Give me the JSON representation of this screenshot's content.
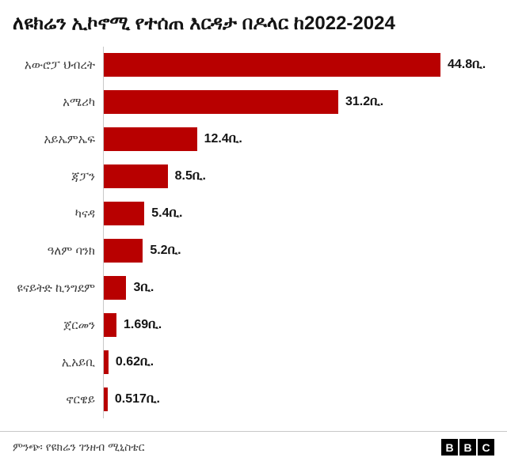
{
  "title": "ለዩክሬን ኢኮኖሚ የተሰጠ እርዳታ በዶላር ከ2022-2024",
  "chart_data": {
    "type": "bar",
    "orientation": "horizontal",
    "title": "ለዩክሬን ኢኮኖሚ የተሰጠ እርዳታ በዶላር ከ2022-2024",
    "categories": [
      "አውሮፓ ህብረት",
      "አሜሪካ",
      "አይኤምኤፍ",
      "ጃፓን",
      "ካናዳ",
      "ዓለም ባንክ",
      "ዩናይትድ ኪንግደም",
      "ጀርመን",
      "ኢአይቢ",
      "ኖርዌይ"
    ],
    "values": [
      44.8,
      31.2,
      12.4,
      8.5,
      5.4,
      5.2,
      3,
      1.69,
      0.62,
      0.517
    ],
    "value_labels": [
      "44.8ቢ.",
      "31.2ቢ.",
      "12.4ቢ.",
      "8.5ቢ.",
      "5.4ቢ.",
      "5.2ቢ.",
      "3ቢ.",
      "1.69ቢ.",
      "0.62ቢ.",
      "0.517ቢ."
    ],
    "unit": "ቢ.",
    "xlim": [
      0,
      48
    ],
    "bar_color": "#b80000",
    "grid": false,
    "legend": false
  },
  "footer": {
    "source": "ምንጭ፡ የዩክሬን ገንዘብ ሚኒስቴር",
    "bbc_letters": [
      "B",
      "B",
      "C"
    ]
  }
}
